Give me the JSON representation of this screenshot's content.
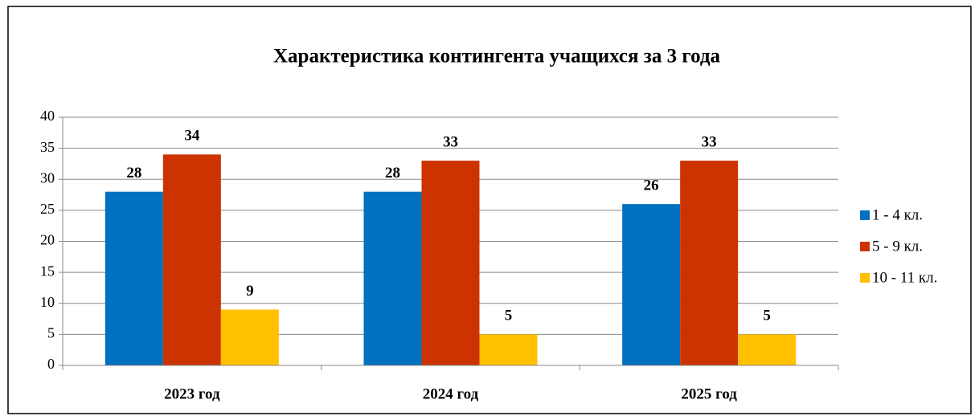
{
  "chart_data": {
    "type": "bar",
    "title": "Характеристика контингента учащихся за 3 года",
    "categories": [
      "2023 год",
      "2024 год",
      "2025 год"
    ],
    "series": [
      {
        "name": "1 - 4 кл.",
        "color": "#0070c0",
        "values": [
          28,
          28,
          26
        ]
      },
      {
        "name": "5 - 9 кл.",
        "color": "#cc3300",
        "values": [
          34,
          33,
          33
        ]
      },
      {
        "name": "10 - 11 кл.",
        "color": "#ffc000",
        "values": [
          9,
          5,
          5
        ]
      }
    ],
    "ylim": [
      0,
      40
    ],
    "yticks": [
      0,
      5,
      10,
      15,
      20,
      25,
      30,
      35,
      40
    ],
    "grid": true,
    "legend": "right"
  }
}
